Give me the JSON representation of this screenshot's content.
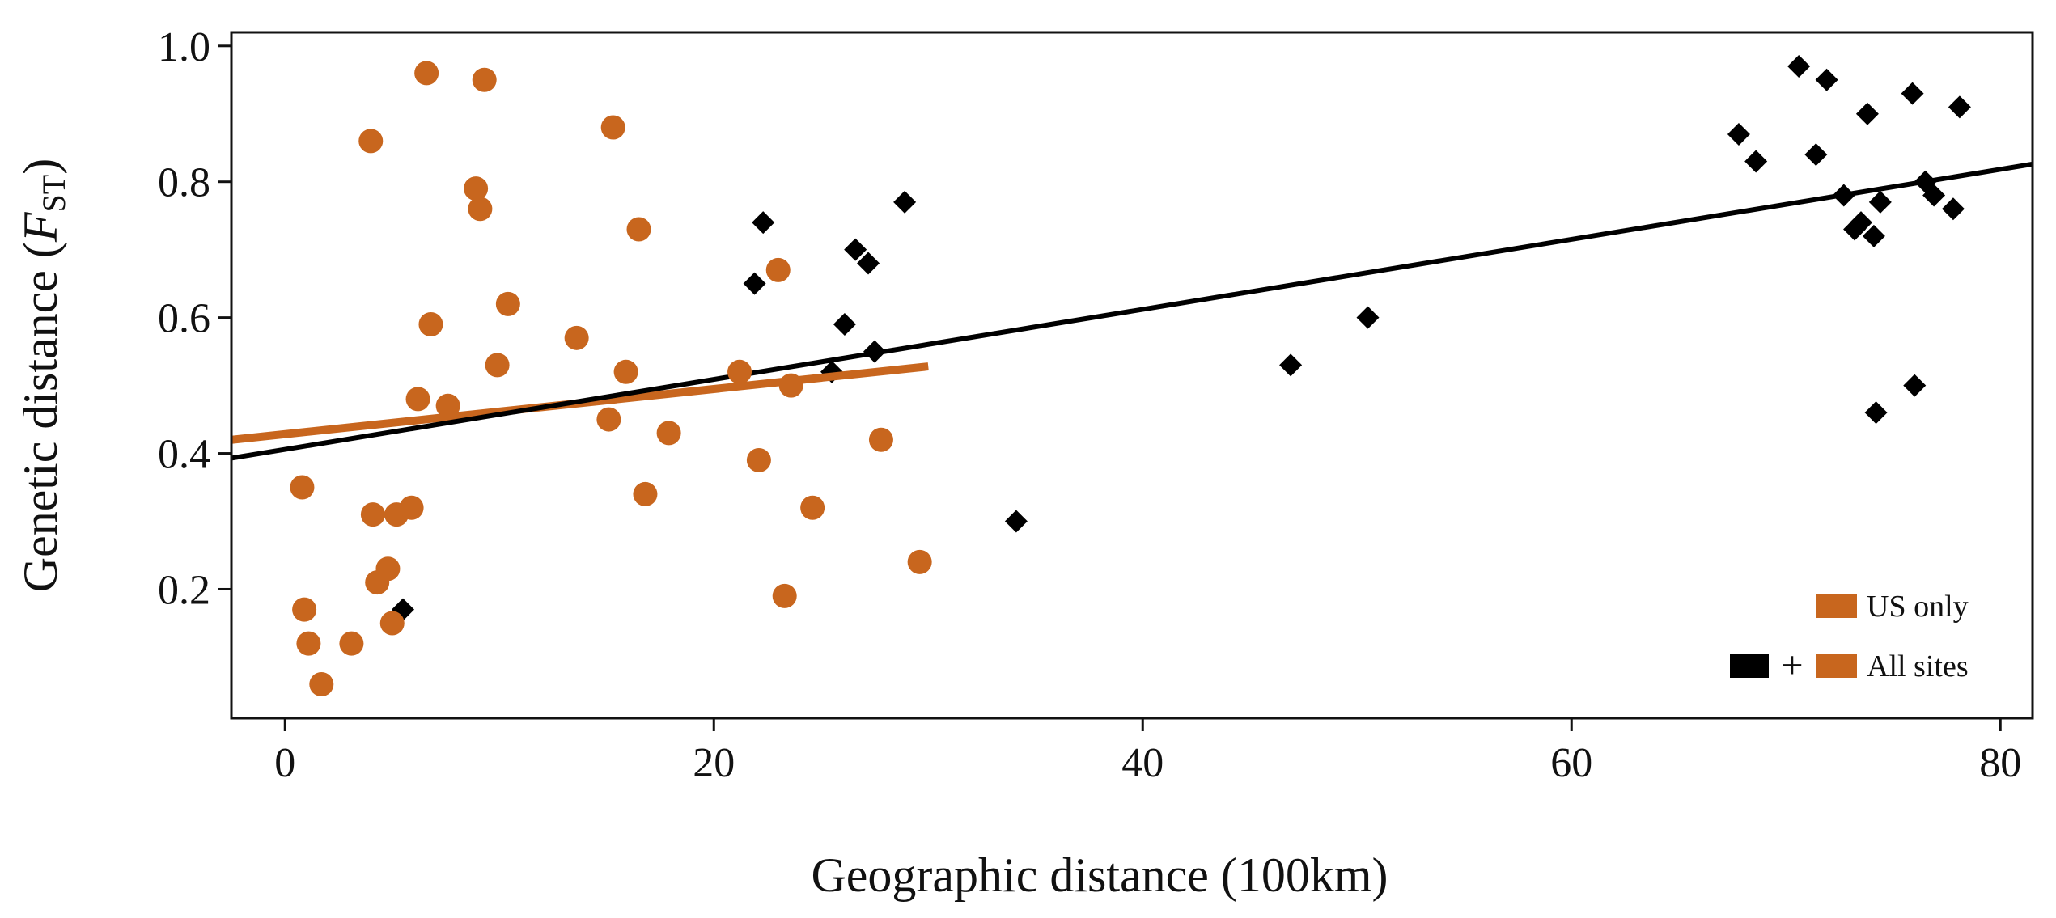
{
  "chart_data": {
    "type": "scatter",
    "xlabel": "Geographic distance (100km)",
    "ylabel": {
      "prefix": "Genetic distance (",
      "symbol": "F",
      "subscript": "ST",
      "suffix": ")"
    },
    "xlim": [
      -2.5,
      81.5
    ],
    "ylim": [
      0.01,
      1.02
    ],
    "xticks": [
      0,
      20,
      40,
      60,
      80
    ],
    "yticks": [
      0.2,
      0.4,
      0.6,
      0.8,
      1.0
    ],
    "xtick_labels": [
      "0",
      "20",
      "40",
      "60",
      "80"
    ],
    "ytick_labels": [
      "0.2",
      "0.4",
      "0.6",
      "0.8",
      "1.0"
    ],
    "grid": false,
    "legend": {
      "position": "bottom-right",
      "entries": [
        {
          "label": "US only",
          "swatches": [
            "#c8661e"
          ]
        },
        {
          "label": "All sites",
          "swatches": [
            "#000000",
            "#c8661e"
          ],
          "joiner": "+"
        }
      ]
    },
    "series": [
      {
        "key": "us",
        "color": "#c8661e",
        "marker": "circle",
        "points": [
          [
            0.8,
            0.35
          ],
          [
            0.9,
            0.17
          ],
          [
            1.1,
            0.12
          ],
          [
            1.7,
            0.06
          ],
          [
            3.1,
            0.12
          ],
          [
            4.0,
            0.86
          ],
          [
            4.1,
            0.31
          ],
          [
            4.3,
            0.21
          ],
          [
            4.8,
            0.23
          ],
          [
            5.0,
            0.15
          ],
          [
            5.2,
            0.31
          ],
          [
            5.9,
            0.32
          ],
          [
            6.2,
            0.48
          ],
          [
            6.6,
            0.96
          ],
          [
            6.8,
            0.59
          ],
          [
            7.6,
            0.47
          ],
          [
            8.9,
            0.79
          ],
          [
            9.1,
            0.76
          ],
          [
            9.3,
            0.95
          ],
          [
            9.9,
            0.53
          ],
          [
            10.4,
            0.62
          ],
          [
            13.6,
            0.57
          ],
          [
            15.1,
            0.45
          ],
          [
            15.3,
            0.88
          ],
          [
            15.9,
            0.52
          ],
          [
            16.5,
            0.73
          ],
          [
            16.8,
            0.34
          ],
          [
            17.9,
            0.43
          ],
          [
            21.2,
            0.52
          ],
          [
            22.1,
            0.39
          ],
          [
            23.0,
            0.67
          ],
          [
            23.3,
            0.19
          ],
          [
            23.6,
            0.5
          ],
          [
            24.6,
            0.32
          ],
          [
            27.8,
            0.42
          ],
          [
            29.6,
            0.24
          ]
        ]
      },
      {
        "key": "other",
        "color": "#000000",
        "marker": "diamond",
        "points": [
          [
            5.5,
            0.17
          ],
          [
            21.9,
            0.65
          ],
          [
            22.3,
            0.74
          ],
          [
            25.5,
            0.52
          ],
          [
            26.1,
            0.59
          ],
          [
            26.6,
            0.7
          ],
          [
            27.2,
            0.68
          ],
          [
            27.5,
            0.55
          ],
          [
            28.9,
            0.77
          ],
          [
            34.1,
            0.3
          ],
          [
            46.9,
            0.53
          ],
          [
            50.5,
            0.6
          ],
          [
            67.8,
            0.87
          ],
          [
            68.6,
            0.83
          ],
          [
            70.6,
            0.97
          ],
          [
            71.4,
            0.84
          ],
          [
            71.9,
            0.95
          ],
          [
            72.7,
            0.78
          ],
          [
            73.2,
            0.73
          ],
          [
            73.5,
            0.74
          ],
          [
            73.8,
            0.9
          ],
          [
            74.1,
            0.72
          ],
          [
            74.2,
            0.46
          ],
          [
            74.4,
            0.77
          ],
          [
            75.9,
            0.93
          ],
          [
            76.0,
            0.5
          ],
          [
            76.5,
            0.8
          ],
          [
            76.9,
            0.78
          ],
          [
            77.8,
            0.76
          ],
          [
            78.1,
            0.91
          ]
        ]
      }
    ],
    "fit_lines": [
      {
        "key": "us-fit",
        "color": "#c8661e",
        "from": [
          -2.5,
          0.42
        ],
        "to": [
          30.0,
          0.528
        ]
      },
      {
        "key": "all-fit",
        "color": "#000000",
        "from": [
          -2.5,
          0.393
        ],
        "to": [
          81.5,
          0.826
        ]
      }
    ]
  }
}
